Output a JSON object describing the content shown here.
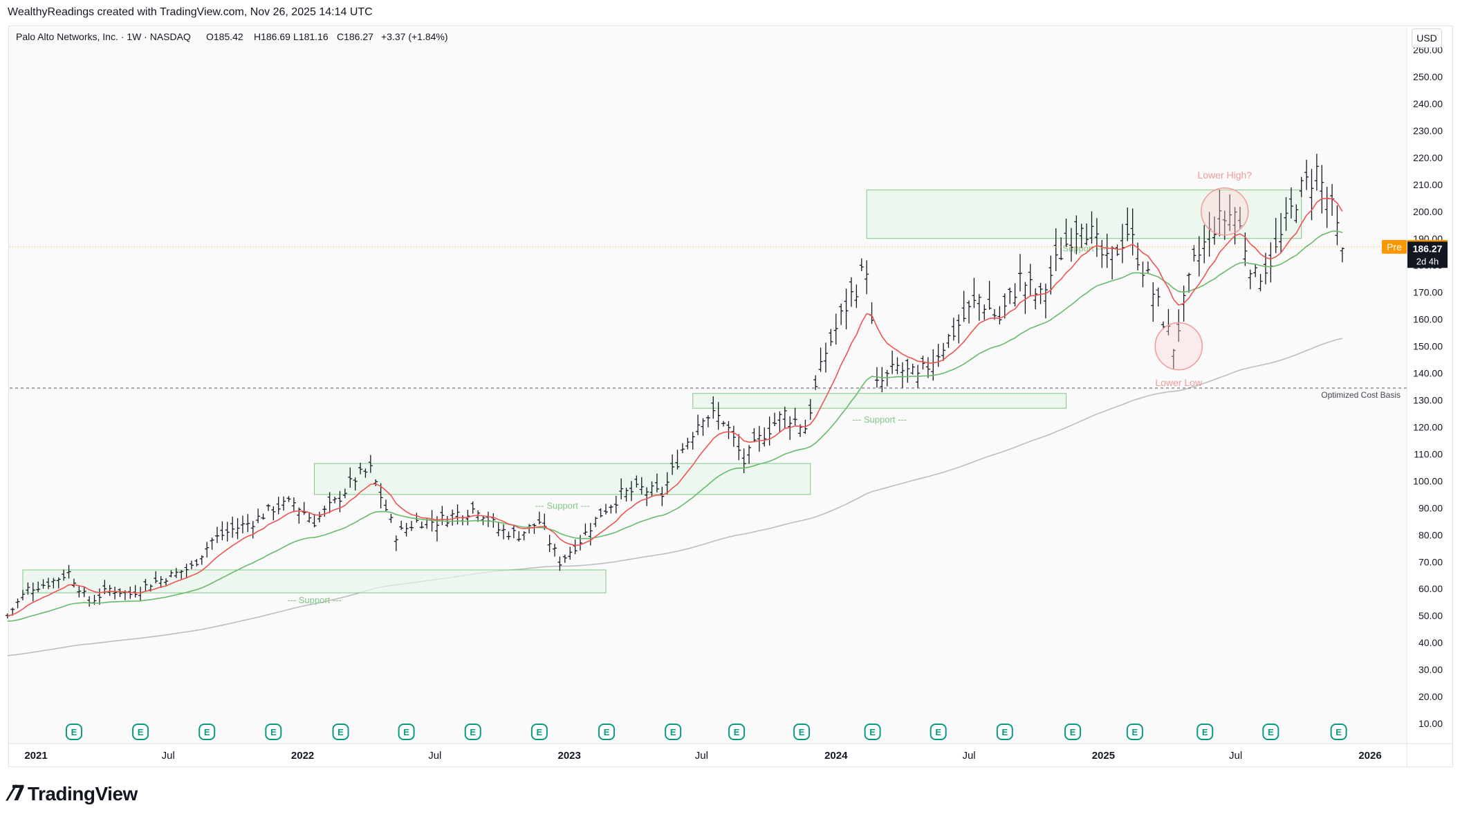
{
  "header": {
    "attribution": "WealthyReadings created with TradingView.com, Nov 26, 2025 14:14 UTC"
  },
  "legend": {
    "symbol": "Palo Alto Networks, Inc. · 1W · NASDAQ",
    "open": "O185.42",
    "high": "H186.69",
    "low": "L181.16",
    "close": "C186.27",
    "change": "+3.37 (+1.84%)"
  },
  "currency": "USD",
  "branding": {
    "name": "TradingView"
  },
  "colors": {
    "ema_fast": "#ef5350",
    "ema_slow": "#66bb6a",
    "sma_long": "#bdbdbd",
    "zone_fill": "#e8f5e9",
    "zone_stroke": "#81c784",
    "annotation_red": "#ef9a9a",
    "pre_badge": "#ff9800",
    "last_badge": "#131722"
  },
  "chart_data": {
    "type": "ohlc",
    "interval": "1W",
    "ylim": [
      0,
      265
    ],
    "y_ticks": [
      "10.00",
      "20.00",
      "30.00",
      "40.00",
      "50.00",
      "60.00",
      "70.00",
      "80.00",
      "90.00",
      "100.00",
      "110.00",
      "120.00",
      "130.00",
      "140.00",
      "150.00",
      "160.00",
      "170.00",
      "180.00",
      "190.00",
      "200.00",
      "210.00",
      "220.00",
      "230.00",
      "240.00",
      "250.00",
      "260.00"
    ],
    "x_ticks": [
      {
        "label": "2021",
        "x": "2021-01-01",
        "bold": true
      },
      {
        "label": "Jul",
        "x": "2021-07-01",
        "bold": false
      },
      {
        "label": "2022",
        "x": "2022-01-01",
        "bold": true
      },
      {
        "label": "Jul",
        "x": "2022-07-01",
        "bold": false
      },
      {
        "label": "2023",
        "x": "2023-01-01",
        "bold": true
      },
      {
        "label": "Jul",
        "x": "2023-07-01",
        "bold": false
      },
      {
        "label": "2024",
        "x": "2024-01-01",
        "bold": true
      },
      {
        "label": "Jul",
        "x": "2024-07-01",
        "bold": false
      },
      {
        "label": "2025",
        "x": "2025-01-01",
        "bold": true
      },
      {
        "label": "Jul",
        "x": "2025-07-01",
        "bold": false
      },
      {
        "label": "2026",
        "x": "2026-01-01",
        "bold": true
      }
    ],
    "price_points": [
      [
        "2020-11-23",
        50
      ],
      [
        "2020-12-21",
        60
      ],
      [
        "2021-01-18",
        62
      ],
      [
        "2021-02-15",
        66
      ],
      [
        "2021-03-15",
        55
      ],
      [
        "2021-04-12",
        60
      ],
      [
        "2021-05-10",
        58
      ],
      [
        "2021-06-07",
        62
      ],
      [
        "2021-07-05",
        65
      ],
      [
        "2021-08-02",
        68
      ],
      [
        "2021-08-30",
        78
      ],
      [
        "2021-09-27",
        82
      ],
      [
        "2021-10-25",
        85
      ],
      [
        "2021-11-22",
        90
      ],
      [
        "2021-12-20",
        92
      ],
      [
        "2022-01-17",
        85
      ],
      [
        "2022-02-14",
        92
      ],
      [
        "2022-03-14",
        101
      ],
      [
        "2022-04-04",
        104
      ],
      [
        "2022-05-09",
        80
      ],
      [
        "2022-06-06",
        85
      ],
      [
        "2022-07-04",
        85
      ],
      [
        "2022-08-01",
        88
      ],
      [
        "2022-08-29",
        90
      ],
      [
        "2022-09-26",
        82
      ],
      [
        "2022-10-24",
        80
      ],
      [
        "2022-11-21",
        85
      ],
      [
        "2022-12-19",
        70
      ],
      [
        "2023-01-16",
        78
      ],
      [
        "2023-02-13",
        88
      ],
      [
        "2023-03-13",
        95
      ],
      [
        "2023-04-10",
        97
      ],
      [
        "2023-05-08",
        95
      ],
      [
        "2023-06-05",
        112
      ],
      [
        "2023-07-03",
        125
      ],
      [
        "2023-07-31",
        123
      ],
      [
        "2023-08-28",
        107
      ],
      [
        "2023-09-25",
        118
      ],
      [
        "2023-10-23",
        125
      ],
      [
        "2023-11-20",
        120
      ],
      [
        "2023-12-18",
        148
      ],
      [
        "2024-01-15",
        165
      ],
      [
        "2024-02-12",
        180
      ],
      [
        "2024-02-26",
        135
      ],
      [
        "2024-03-25",
        142
      ],
      [
        "2024-04-22",
        138
      ],
      [
        "2024-05-20",
        148
      ],
      [
        "2024-06-17",
        158
      ],
      [
        "2024-07-15",
        168
      ],
      [
        "2024-08-12",
        160
      ],
      [
        "2024-09-09",
        175
      ],
      [
        "2024-10-07",
        168
      ],
      [
        "2024-11-04",
        185
      ],
      [
        "2024-12-02",
        198
      ],
      [
        "2025-01-06",
        180
      ],
      [
        "2025-02-03",
        193
      ],
      [
        "2025-03-03",
        175
      ],
      [
        "2025-04-07",
        150
      ],
      [
        "2025-05-05",
        180
      ],
      [
        "2025-06-02",
        195
      ],
      [
        "2025-06-30",
        200
      ],
      [
        "2025-07-28",
        175
      ],
      [
        "2025-08-25",
        185
      ],
      [
        "2025-09-22",
        205
      ],
      [
        "2025-10-20",
        215
      ],
      [
        "2025-11-10",
        200
      ],
      [
        "2025-11-24",
        186
      ]
    ],
    "last": {
      "label": "186.27",
      "sub": "2d 4h"
    },
    "pre": {
      "label": "Pre",
      "value": "186.90",
      "y": 186.9
    },
    "cost_basis": {
      "label": "Optimized Cost Basis",
      "y": 134.5
    },
    "zones": [
      {
        "x0": "2020-12-14",
        "x1": "2023-02-20",
        "y0": 58.5,
        "y1": 67,
        "label": "--- Support ---",
        "label_y": 56
      },
      {
        "x0": "2022-01-17",
        "x1": "2023-11-27",
        "y0": 95,
        "y1": 106.5,
        "label": "--- Support ---",
        "label_y": 91
      },
      {
        "x0": "2023-06-19",
        "x1": "2024-11-11",
        "y0": 127,
        "y1": 132.5,
        "label": "--- Support ---",
        "label_y": 123
      },
      {
        "x0": "2024-02-12",
        "x1": "2025-09-29",
        "y0": 190,
        "y1": 208,
        "label": "Support ---",
        "label_y": 186.5
      }
    ],
    "annotations": [
      {
        "text": "Lower High?",
        "x": "2025-06-16",
        "y": 200,
        "label_y": 213.5
      },
      {
        "text": "Lower Low",
        "x": "2025-04-14",
        "y": 150,
        "label_y": 136.5
      }
    ],
    "earnings_marker": "E"
  }
}
